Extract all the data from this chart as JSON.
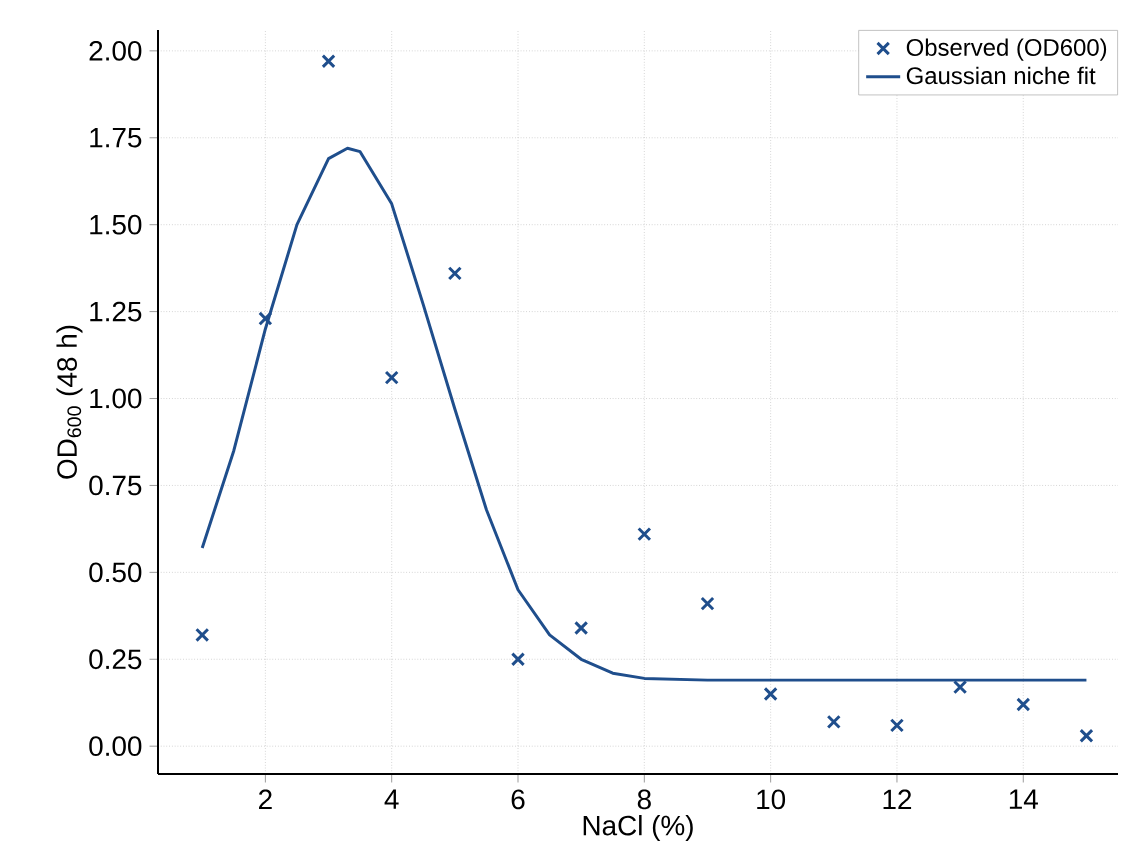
{
  "chart_data": {
    "type": "scatter",
    "xlabel": "NaCl (%)",
    "ylabel": "OD$_{600}$ (48 h)",
    "xlim": [
      0.3,
      15.5
    ],
    "ylim": [
      -0.08,
      2.06
    ],
    "xticks": [
      2,
      4,
      6,
      8,
      10,
      12,
      14
    ],
    "yticks": [
      {
        "value": 0,
        "label": "0.00"
      },
      {
        "value": 0.25,
        "label": "0.25"
      },
      {
        "value": 0.5,
        "label": "0.50"
      },
      {
        "value": 0.75,
        "label": "0.75"
      },
      {
        "value": 1,
        "label": "1.00"
      },
      {
        "value": 1.25,
        "label": "1.25"
      },
      {
        "value": 1.5,
        "label": "1.50"
      },
      {
        "value": 1.75,
        "label": "1.75"
      },
      {
        "value": 2,
        "label": "2.00"
      }
    ],
    "grid": true,
    "legend": "top right",
    "marker": "cross",
    "series": [
      {
        "name": "Observed (OD600)",
        "color": "#1f4e8c",
        "x": [
          1,
          2,
          3,
          4,
          5,
          6,
          7,
          8,
          9,
          10,
          11,
          12,
          13,
          14,
          15
        ],
        "values": [
          0.32,
          1.23,
          1.97,
          1.06,
          1.36,
          0.25,
          0.34,
          0.61,
          0.41,
          0.15,
          0.07,
          0.06,
          0.17,
          0.12,
          0.03
        ]
      },
      {
        "name": "Gaussian niche fit",
        "type": "line",
        "marker": "none",
        "line_style": "solid",
        "color": "#1f4e8c",
        "x": [
          1,
          1.5,
          2,
          2.5,
          3,
          3.3,
          3.5,
          4,
          4.5,
          5,
          5.5,
          6,
          6.5,
          7,
          7.5,
          8,
          9,
          10,
          12,
          15
        ],
        "values": [
          0.57,
          0.85,
          1.2,
          1.5,
          1.69,
          1.72,
          1.71,
          1.56,
          1.27,
          0.97,
          0.68,
          0.45,
          0.32,
          0.25,
          0.21,
          0.195,
          0.19,
          0.19,
          0.19,
          0.19
        ]
      }
    ]
  }
}
